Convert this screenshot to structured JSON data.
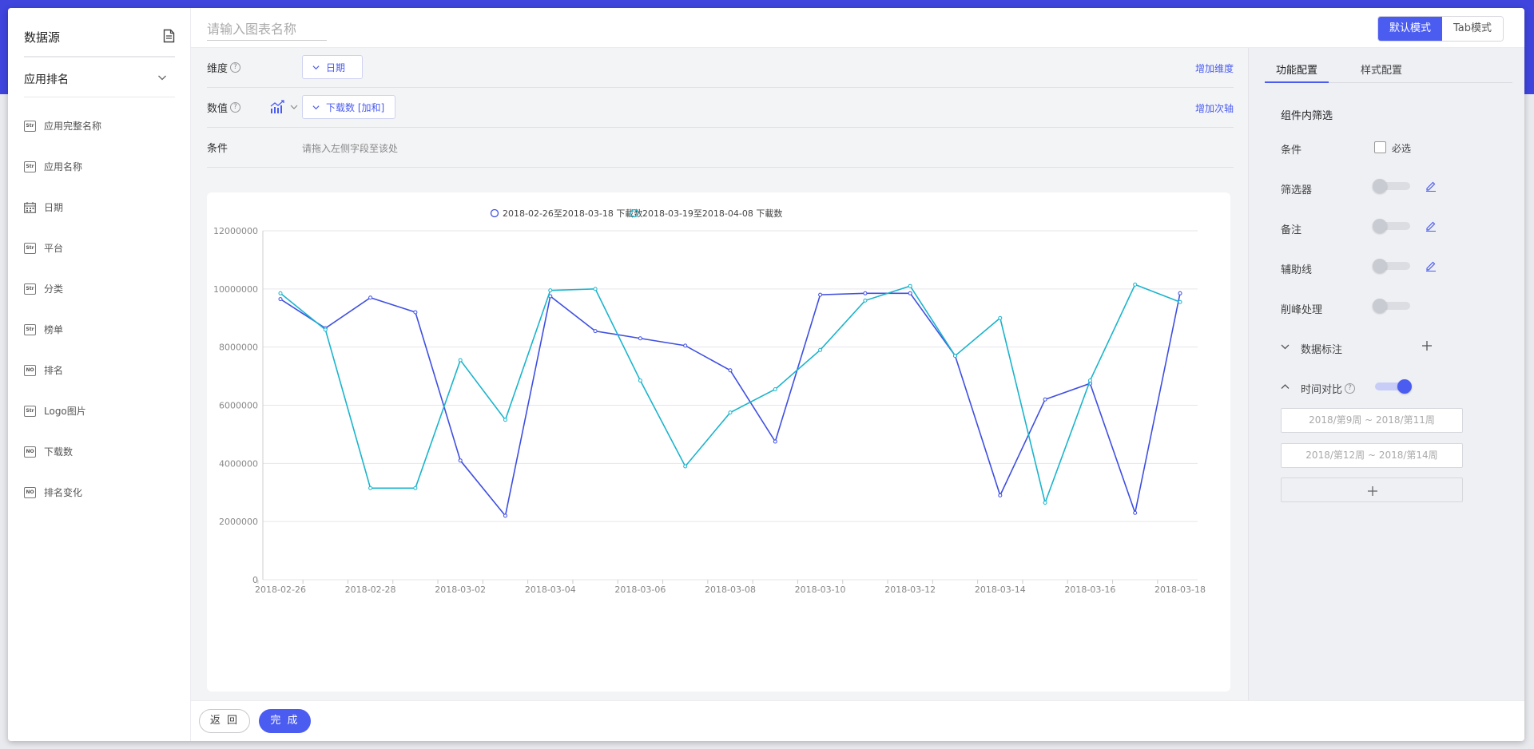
{
  "sidebar": {
    "title": "数据源",
    "source_select": "应用排名",
    "fields": [
      {
        "type": "Str",
        "icon": "string-field-icon",
        "label": "应用完整名称"
      },
      {
        "type": "Str",
        "icon": "string-field-icon",
        "label": "应用名称"
      },
      {
        "type": "date",
        "icon": "calendar-icon",
        "label": "日期"
      },
      {
        "type": "Str",
        "icon": "string-field-icon",
        "label": "平台"
      },
      {
        "type": "Str",
        "icon": "string-field-icon",
        "label": "分类"
      },
      {
        "type": "Str",
        "icon": "string-field-icon",
        "label": "榜单"
      },
      {
        "type": "NO",
        "icon": "number-field-icon",
        "label": "排名"
      },
      {
        "type": "Str",
        "icon": "string-field-icon",
        "label": "Logo图片"
      },
      {
        "type": "NO",
        "icon": "number-field-icon",
        "label": "下载数"
      },
      {
        "type": "NO",
        "icon": "number-field-icon",
        "label": "排名变化"
      }
    ]
  },
  "topbar": {
    "chart_name_placeholder": "请输入图表名称",
    "mode_default": "默认模式",
    "mode_tab": "Tab模式"
  },
  "config": {
    "dimension_label": "维度",
    "dimension_value": "日期",
    "add_dimension": "增加维度",
    "value_label": "数值",
    "value_value": "下载数 [加和]",
    "add_axis": "增加次轴",
    "condition_label": "条件",
    "condition_hint": "请拖入左侧字段至该处"
  },
  "right_panel": {
    "tab_function": "功能配置",
    "tab_style": "样式配置",
    "section_title": "组件内筛选",
    "condition_label": "条件",
    "required_label": "必选",
    "filter_label": "筛选器",
    "note_label": "备注",
    "guideline_label": "辅助线",
    "peak_label": "削峰处理",
    "data_label_label": "数据标注",
    "time_compare_label": "时间对比",
    "time_compare_on": true,
    "range1": "2018/第9周 ~ 2018/第11周",
    "range2": "2018/第12周 ~ 2018/第14周"
  },
  "bottom": {
    "back_label": "返 回",
    "done_label": "完 成"
  },
  "colors": {
    "accent": "#4b5cf0",
    "series1": "#3f4fe0",
    "series2": "#1ab4cc",
    "header_band": "#3f45dd"
  },
  "chart_data": {
    "type": "line",
    "categories": [
      "2018-02-26",
      "2018-02-27",
      "2018-02-28",
      "2018-03-01",
      "2018-03-02",
      "2018-03-03",
      "2018-03-04",
      "2018-03-05",
      "2018-03-06",
      "2018-03-07",
      "2018-03-08",
      "2018-03-09",
      "2018-03-10",
      "2018-03-11",
      "2018-03-12",
      "2018-03-13",
      "2018-03-14",
      "2018-03-15",
      "2018-03-16",
      "2018-03-17",
      "2018-03-18"
    ],
    "tick_labels": [
      "2018-02-26",
      "2018-02-28",
      "2018-03-02",
      "2018-03-04",
      "2018-03-06",
      "2018-03-08",
      "2018-03-10",
      "2018-03-12",
      "2018-03-14",
      "2018-03-16",
      "2018-03-18"
    ],
    "ylim": [
      0,
      12000000
    ],
    "yticks": [
      "0",
      "2000000",
      "4000000",
      "6000000",
      "8000000",
      "10000000",
      "12000000"
    ],
    "legend_position": "top-center",
    "grid": true,
    "series": [
      {
        "name": "2018-02-26至2018-03-18 下載数",
        "color": "#3f4fe0",
        "values": [
          9650000,
          8650000,
          9700000,
          9200000,
          4100000,
          2200000,
          9750000,
          8550000,
          8300000,
          8050000,
          7200000,
          4750000,
          9800000,
          9850000,
          9850000,
          7700000,
          2900000,
          6200000,
          6750000,
          2300000,
          9850000
        ]
      },
      {
        "name": "2018-03-19至2018-04-08 下載数",
        "color": "#1ab4cc",
        "values": [
          9850000,
          8600000,
          3150000,
          3150000,
          7550000,
          5500000,
          9950000,
          10000000,
          6850000,
          3900000,
          5750000,
          6550000,
          7900000,
          9600000,
          10100000,
          7700000,
          9000000,
          2650000,
          6850000,
          10150000,
          9550000
        ]
      }
    ]
  }
}
